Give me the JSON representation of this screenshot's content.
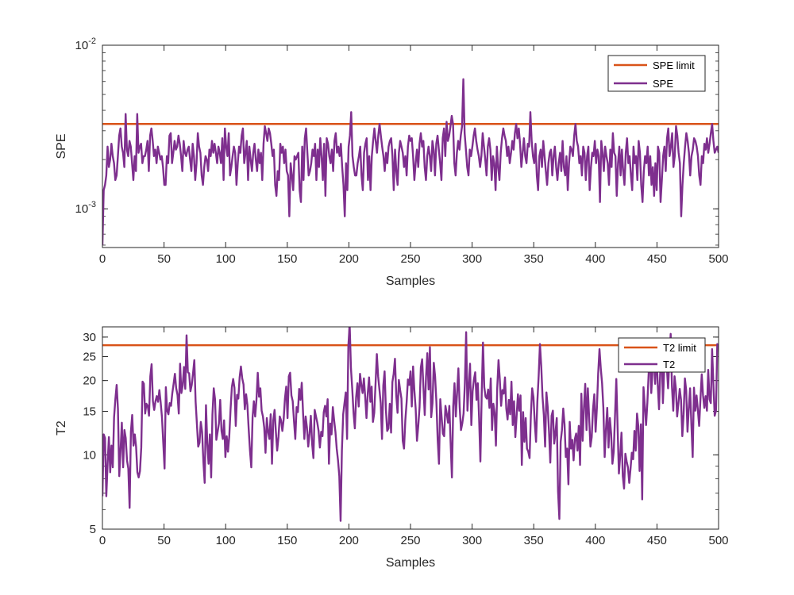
{
  "chart_data": [
    {
      "type": "line",
      "yscale": "log",
      "xlabel": "Samples",
      "ylabel": "SPE",
      "xlim": [
        0,
        500
      ],
      "ylim": [
        0.00058,
        0.01
      ],
      "xticks": [
        0,
        50,
        100,
        150,
        200,
        250,
        300,
        350,
        400,
        450,
        500
      ],
      "xtick_labels": [
        "0",
        "50",
        "100",
        "150",
        "200",
        "250",
        "300",
        "350",
        "400",
        "450",
        "500"
      ],
      "yticks": [
        0.001,
        0.01
      ],
      "ytick_labels": [
        {
          "base": "10",
          "exp": "-3"
        },
        {
          "base": "10",
          "exp": "-2"
        }
      ],
      "legend_position": "top-right",
      "limit": {
        "name": "SPE limit",
        "value": 0.0033,
        "color": "#D95319"
      },
      "series": {
        "name": "SPE",
        "color": "#7E2F8E",
        "values": [
          0.0006,
          0.0013,
          0.0014,
          0.0016,
          0.0024,
          0.0018,
          0.002,
          0.0025,
          0.0021,
          0.0019,
          0.0015,
          0.0016,
          0.0021,
          0.0028,
          0.0031,
          0.0024,
          0.0022,
          0.0018,
          0.0038,
          0.0023,
          0.0021,
          0.0026,
          0.0024,
          0.0019,
          0.0015,
          0.0021,
          0.0017,
          0.0038,
          0.0022,
          0.0024,
          0.0025,
          0.0019,
          0.0021,
          0.0021,
          0.0023,
          0.0026,
          0.0017,
          0.0028,
          0.0031,
          0.0026,
          0.0021,
          0.0023,
          0.0019,
          0.0024,
          0.0022,
          0.002,
          0.0021,
          0.0018,
          0.0014,
          0.0014,
          0.0021,
          0.0019,
          0.0028,
          0.0029,
          0.0019,
          0.0022,
          0.0026,
          0.0023,
          0.0024,
          0.0028,
          0.0025,
          0.0021,
          0.0017,
          0.0026,
          0.0022,
          0.0021,
          0.0023,
          0.0024,
          0.002,
          0.0017,
          0.0025,
          0.0021,
          0.0015,
          0.0019,
          0.0029,
          0.0024,
          0.0022,
          0.0016,
          0.0014,
          0.0018,
          0.0021,
          0.002,
          0.0017,
          0.0023,
          0.0021,
          0.0026,
          0.0022,
          0.0025,
          0.0022,
          0.0019,
          0.0024,
          0.0022,
          0.0019,
          0.0027,
          0.0015,
          0.0031,
          0.0024,
          0.0021,
          0.0029,
          0.0016,
          0.0018,
          0.0021,
          0.0024,
          0.0022,
          0.0014,
          0.0019,
          0.0024,
          0.0022,
          0.0028,
          0.0031,
          0.0019,
          0.0022,
          0.0026,
          0.0015,
          0.0024,
          0.002,
          0.0017,
          0.0022,
          0.0025,
          0.002,
          0.0017,
          0.0023,
          0.0019,
          0.0022,
          0.0015,
          0.0025,
          0.0032,
          0.0029,
          0.0026,
          0.0031,
          0.0029,
          0.0025,
          0.0021,
          0.0023,
          0.0014,
          0.0012,
          0.0017,
          0.0015,
          0.0025,
          0.0022,
          0.0024,
          0.0019,
          0.0023,
          0.0017,
          0.0016,
          0.0009,
          0.0019,
          0.0016,
          0.0013,
          0.0021,
          0.002,
          0.0021,
          0.0022,
          0.0013,
          0.0011,
          0.0024,
          0.0015,
          0.0027,
          0.0031,
          0.0022,
          0.0016,
          0.0017,
          0.0019,
          0.0023,
          0.0021,
          0.0025,
          0.0015,
          0.0023,
          0.0018,
          0.0027,
          0.0021,
          0.0015,
          0.0025,
          0.0012,
          0.0027,
          0.0025,
          0.0021,
          0.0019,
          0.0023,
          0.0017,
          0.0026,
          0.0029,
          0.0022,
          0.0024,
          0.0021,
          0.0025,
          0.0018,
          0.0014,
          0.0009,
          0.0019,
          0.0013,
          0.0024,
          0.0028,
          0.0039,
          0.0021,
          0.0018,
          0.0016,
          0.0016,
          0.0019,
          0.0021,
          0.0024,
          0.0016,
          0.0013,
          0.0022,
          0.0025,
          0.0027,
          0.0015,
          0.0021,
          0.0013,
          0.0021,
          0.0026,
          0.0031,
          0.0026,
          0.0022,
          0.0028,
          0.0033,
          0.0028,
          0.0024,
          0.0021,
          0.0017,
          0.0022,
          0.0019,
          0.0024,
          0.0026,
          0.0027,
          0.0021,
          0.0013,
          0.0023,
          0.0017,
          0.0014,
          0.0022,
          0.0026,
          0.0024,
          0.0022,
          0.0018,
          0.0021,
          0.0016,
          0.0024,
          0.0028,
          0.0026,
          0.0027,
          0.0021,
          0.0015,
          0.0019,
          0.0023,
          0.0018,
          0.0025,
          0.0029,
          0.0024,
          0.0026,
          0.0018,
          0.0015,
          0.0021,
          0.0024,
          0.0021,
          0.0017,
          0.0026,
          0.0023,
          0.0016,
          0.0025,
          0.0028,
          0.0023,
          0.0019,
          0.0015,
          0.0027,
          0.0031,
          0.0021,
          0.0034,
          0.0026,
          0.0028,
          0.0032,
          0.0037,
          0.0033,
          0.0019,
          0.0016,
          0.0022,
          0.0026,
          0.0023,
          0.0028,
          0.0032,
          0.0062,
          0.0029,
          0.0023,
          0.0018,
          0.0016,
          0.0023,
          0.0021,
          0.0024,
          0.0028,
          0.0031,
          0.0026,
          0.0023,
          0.0021,
          0.0018,
          0.0021,
          0.0029,
          0.0024,
          0.002,
          0.0016,
          0.0024,
          0.0027,
          0.0023,
          0.0015,
          0.0021,
          0.0019,
          0.0013,
          0.0024,
          0.0018,
          0.0015,
          0.0022,
          0.0027,
          0.0031,
          0.0028,
          0.0026,
          0.0021,
          0.0024,
          0.0019,
          0.0022,
          0.0026,
          0.0023,
          0.0029,
          0.0033,
          0.0027,
          0.0031,
          0.0025,
          0.0018,
          0.0022,
          0.0027,
          0.0021,
          0.0019,
          0.0025,
          0.0024,
          0.0039,
          0.0026,
          0.0021,
          0.0019,
          0.0025,
          0.0016,
          0.0013,
          0.0021,
          0.0023,
          0.0018,
          0.0026,
          0.0021,
          0.0017,
          0.0014,
          0.0019,
          0.0022,
          0.0023,
          0.0016,
          0.0021,
          0.0024,
          0.0018,
          0.0015,
          0.0019,
          0.0022,
          0.0017,
          0.0026,
          0.0018,
          0.0016,
          0.0021,
          0.0013,
          0.0019,
          0.0024,
          0.0023,
          0.0021,
          0.0028,
          0.0033,
          0.0026,
          0.0024,
          0.0019,
          0.0021,
          0.0016,
          0.0024,
          0.0022,
          0.0015,
          0.0021,
          0.0024,
          0.0013,
          0.0018,
          0.0022,
          0.0021,
          0.0026,
          0.0019,
          0.0023,
          0.0021,
          0.0011,
          0.0026,
          0.0022,
          0.0017,
          0.0024,
          0.0021,
          0.0019,
          0.0014,
          0.0023,
          0.0018,
          0.0029,
          0.0022,
          0.0021,
          0.0012,
          0.0019,
          0.0024,
          0.0016,
          0.0023,
          0.0017,
          0.0014,
          0.0022,
          0.0027,
          0.0019,
          0.0021,
          0.0016,
          0.0013,
          0.0024,
          0.0019,
          0.0021,
          0.0015,
          0.0026,
          0.0022,
          0.0014,
          0.0011,
          0.0017,
          0.0021,
          0.0019,
          0.0024,
          0.0016,
          0.0021,
          0.0014,
          0.0018,
          0.0012,
          0.0019,
          0.0013,
          0.0024,
          0.0022,
          0.0011,
          0.0015,
          0.0021,
          0.0024,
          0.0017,
          0.0027,
          0.0031,
          0.0021,
          0.0024,
          0.0029,
          0.0018,
          0.0021,
          0.0032,
          0.0028,
          0.0022,
          0.0019,
          0.0009,
          0.0014,
          0.0019,
          0.0024,
          0.0029,
          0.0026,
          0.0022,
          0.0016,
          0.0021,
          0.0023,
          0.0027,
          0.0026,
          0.0024,
          0.0021,
          0.0016,
          0.0014,
          0.0021,
          0.0019,
          0.0025,
          0.0023,
          0.0027,
          0.0022,
          0.0025,
          0.0029,
          0.0033,
          0.0026,
          0.0022,
          0.0023,
          0.0024,
          0.0022
        ]
      },
      "legend": [
        "SPE limit",
        "SPE"
      ]
    },
    {
      "type": "line",
      "yscale": "log",
      "xlabel": "Samples",
      "ylabel": "T2",
      "xlim": [
        0,
        500
      ],
      "ylim": [
        5,
        33
      ],
      "xticks": [
        0,
        50,
        100,
        150,
        200,
        250,
        300,
        350,
        400,
        450,
        500
      ],
      "xtick_labels": [
        "0",
        "50",
        "100",
        "150",
        "200",
        "250",
        "300",
        "350",
        "400",
        "450",
        "500"
      ],
      "yticks": [
        5,
        10,
        15,
        20,
        25,
        30
      ],
      "ytick_labels": [
        "5",
        "10",
        "15",
        "20",
        "25",
        "30"
      ],
      "legend_position": "top-right",
      "limit": {
        "name": "T2 limit",
        "value": 27.8,
        "color": "#D95319"
      },
      "series": {
        "name": "T2",
        "color": "#7E2F8E",
        "values": [
          6.8,
          12.1,
          11.7,
          6.8,
          9.2,
          11.8,
          8.5,
          10.9,
          8.9,
          14.2,
          16.8,
          19.2,
          15.3,
          8.2,
          10.4,
          13.5,
          8.9,
          12.6,
          11.7,
          9.5,
          8.8,
          6.1,
          12.4,
          14.5,
          10.9,
          12.1,
          10.8,
          8.5,
          8.1,
          8.6,
          10.7,
          19.8,
          19.4,
          14.7,
          16.1,
          15.8,
          14.4,
          20.8,
          23.3,
          16.5,
          15.2,
          16.5,
          17.3,
          16.4,
          18.3,
          16.3,
          14.2,
          11.2,
          8.8,
          18.8,
          15.1,
          14.6,
          16.2,
          15.8,
          17.8,
          19.4,
          21.3,
          18.6,
          17.5,
          14.7,
          23.4,
          17.8,
          19.1,
          22.7,
          18.5,
          30.5,
          21.6,
          21.4,
          18.1,
          19.2,
          21.4,
          24.2,
          16.4,
          13.3,
          10.8,
          11.2,
          13.6,
          12.4,
          9.4,
          7.7,
          15.9,
          11.2,
          9.2,
          12.1,
          8.1,
          14.6,
          18.6,
          16.8,
          11.5,
          12.4,
          13.4,
          16.7,
          12.5,
          11.6,
          13.8,
          9.8,
          11.9,
          10.3,
          11.9,
          15.3,
          18.8,
          20.3,
          18.7,
          13.1,
          17.5,
          16.9,
          20.6,
          22.8,
          20.4,
          19.3,
          15.3,
          17.6,
          15.9,
          12.7,
          10.4,
          8.9,
          14.2,
          16.5,
          14.3,
          16.7,
          21.5,
          17.2,
          18.6,
          15.1,
          14.3,
          12.9,
          10.2,
          14.1,
          12.4,
          11.6,
          14.6,
          9.2,
          13.8,
          15.2,
          12.4,
          10.4,
          11.8,
          14.3,
          13.8,
          12.5,
          13.9,
          16.9,
          18.9,
          14.1,
          20.8,
          21.5,
          17.4,
          16.5,
          13.7,
          11.6,
          15.6,
          14.9,
          18.5,
          16.7,
          19.6,
          14.8,
          11.6,
          14.3,
          12.9,
          10.8,
          12.2,
          14.4,
          11.1,
          9.7,
          15.2,
          14.3,
          13.5,
          12.5,
          10.7,
          12.4,
          11.9,
          14.9,
          15.8,
          14.3,
          16.8,
          9.2,
          13.4,
          12.1,
          15.6,
          13.8,
          12.4,
          10.6,
          9.5,
          8.2,
          5.4,
          10.4,
          14.6,
          16.2,
          17.9,
          11.6,
          27.6,
          33.8,
          22.4,
          18.5,
          14.8,
          12.8,
          17.1,
          19.5,
          15.7,
          21.3,
          19.2,
          17.8,
          20.4,
          17.2,
          14.1,
          17.8,
          20.6,
          16.4,
          18.9,
          13.6,
          14.8,
          19.4,
          25.6,
          20.8,
          18.4,
          16.2,
          11.6,
          19.1,
          21.8,
          15.2,
          12.5,
          12.8,
          16.1,
          12.3,
          19.7,
          21.3,
          24.5,
          17.4,
          14.8,
          20.1,
          18.3,
          16.9,
          11.4,
          10.6,
          13.8,
          16.3,
          20.2,
          19.2,
          21.8,
          15.7,
          22.8,
          18.2,
          15.4,
          11.4,
          13.1,
          15.6,
          22.6,
          24.4,
          18.8,
          14.5,
          20.7,
          25.8,
          18.4,
          27.3,
          14.2,
          16.2,
          23.6,
          20.8,
          16.4,
          11.5,
          9.2,
          16.8,
          14.3,
          12.2,
          11.9,
          15.8,
          14.7,
          13.5,
          15.8,
          11.2,
          8.1,
          15.7,
          19.5,
          14.3,
          17.8,
          22.4,
          15.6,
          12.6,
          13.4,
          14.7,
          19.4,
          31.4,
          15.1,
          19.1,
          23.4,
          13.2,
          18.1,
          20.2,
          21.6,
          16.7,
          19.5,
          14.1,
          9.4,
          17.5,
          28.5,
          18.8,
          17.2,
          16.9,
          18.4,
          15.5,
          20.4,
          12.6,
          16.1,
          14.8,
          10.9,
          18.6,
          24.2,
          20.2,
          15.8,
          18.3,
          17.7,
          20.6,
          15.4,
          13.9,
          16.7,
          14.6,
          19.8,
          13.2,
          16.5,
          11.8,
          14.4,
          17.6,
          15.1,
          17.4,
          9.1,
          14.9,
          11.3,
          14.1,
          10.6,
          10.3,
          9.7,
          14.5,
          18.6,
          17.1,
          13.5,
          11.3,
          16.4,
          20.8,
          28.1,
          22.9,
          17.2,
          14.5,
          10.8,
          17.9,
          15.6,
          12.5,
          9.3,
          14.4,
          15.1,
          11.1,
          12.3,
          14.1,
          7.1,
          5.5,
          11.3,
          12.6,
          15.4,
          13.3,
          9.8,
          10.6,
          7.6,
          13.6,
          10.6,
          11.5,
          9.5,
          11.6,
          12.2,
          10.4,
          13.1,
          9.1,
          17.7,
          11.4,
          15.6,
          19.4,
          12.6,
          18.6,
          14.2,
          10.8,
          11.8,
          15.3,
          17.6,
          12.4,
          15.5,
          21.4,
          26.8,
          22.4,
          19.5,
          15.5,
          9.8,
          12.7,
          15.5,
          10.7,
          14.1,
          12.2,
          9.2,
          10.3,
          14.4,
          20.3,
          12.9,
          8.4,
          9.9,
          12.3,
          8.2,
          7.3,
          10.1,
          9.4,
          8.9,
          7.7,
          8.8,
          10.2,
          9.6,
          12.5,
          10.4,
          14.7,
          13.1,
          8.6,
          13.3,
          6.6,
          18.8,
          15.8,
          13.2,
          16.3,
          21.4,
          26.4,
          17.8,
          22.1,
          24.4,
          19.4,
          26.8,
          19.3,
          15.3,
          22.3,
          26.1,
          16.2,
          22.2,
          28.3,
          22.8,
          18.6,
          24.1,
          30.9,
          18.9,
          15.1,
          20.8,
          18.6,
          14.3,
          16.2,
          18.5,
          16.7,
          11.9,
          14.6,
          20.4,
          18.2,
          12.4,
          15.4,
          18.6,
          13.3,
          9.8,
          18.7,
          15.1,
          17.4,
          15.2,
          13.1,
          16.8,
          21.2,
          17.4,
          15.5,
          17.3,
          15.1,
          22.1,
          16.8,
          16.2,
          26.8,
          19.4,
          14.4,
          15.1,
          28.1,
          27.4
        ]
      },
      "legend": [
        "T2 limit",
        "T2"
      ]
    }
  ]
}
